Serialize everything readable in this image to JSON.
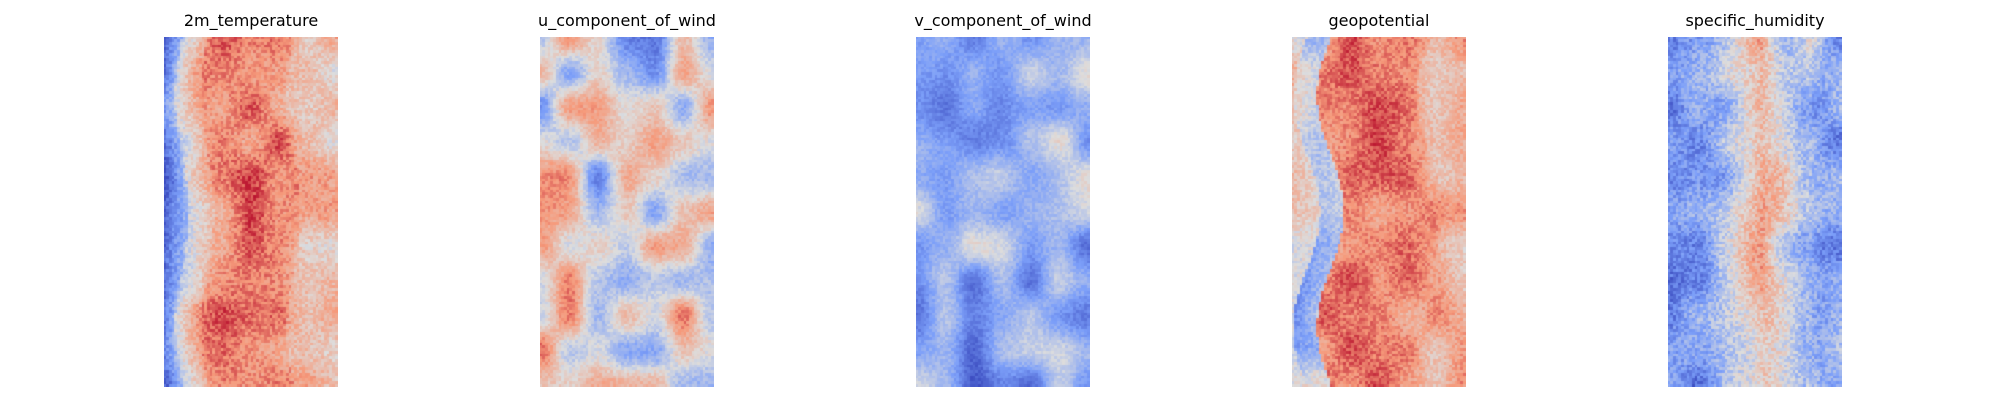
{
  "chart_data": [
    {
      "type": "heatmap",
      "title": "2m_temperature",
      "colormap": "coolwarm",
      "axis": "off",
      "grid_cells": [
        64,
        128
      ],
      "description_of_field": "cold band on left edge, warm speckled interior",
      "pattern": "temperature"
    },
    {
      "type": "heatmap",
      "title": "u_component_of_wind",
      "colormap": "coolwarm",
      "axis": "off",
      "grid_cells": [
        64,
        128
      ],
      "pattern": "u_wind"
    },
    {
      "type": "heatmap",
      "title": "v_component_of_wind",
      "colormap": "coolwarm",
      "axis": "off",
      "grid_cells": [
        64,
        128
      ],
      "pattern": "v_wind"
    },
    {
      "type": "heatmap",
      "title": "geopotential",
      "colormap": "coolwarm",
      "axis": "off",
      "grid_cells": [
        64,
        128
      ],
      "pattern": "geopotential"
    },
    {
      "type": "heatmap",
      "title": "specific_humidity",
      "colormap": "coolwarm",
      "axis": "off",
      "grid_cells": [
        64,
        128
      ],
      "pattern": "humidity"
    }
  ],
  "colors": {
    "cold": "#3b4cc0",
    "neutral": "#dddddd",
    "warm": "#b40426"
  }
}
